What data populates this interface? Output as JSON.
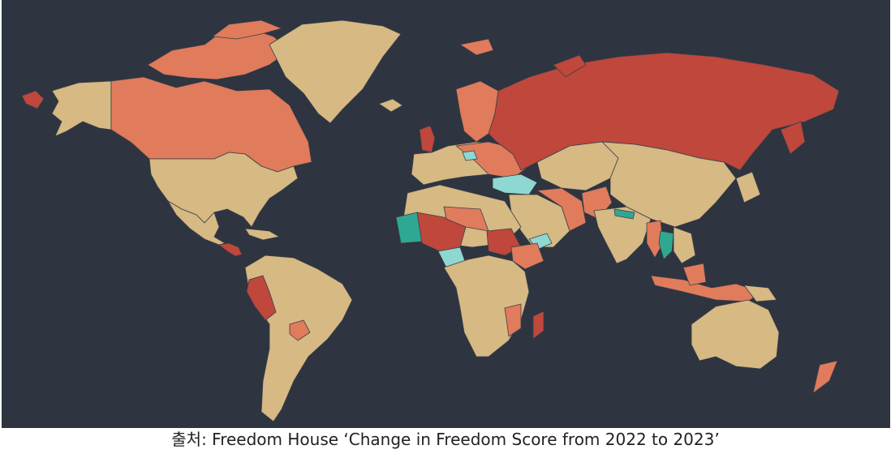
{
  "caption": "출처: Freedom House ‘Change in Freedom Score from 2022 to 2023’",
  "colors": {
    "ocean": "#2e3440",
    "no_change": "#d6b983",
    "decline_small": "#e07b5c",
    "decline_large": "#bf473c",
    "improve_small": "#8fd8d2",
    "improve_large": "#2fa891",
    "border": "#3a3f48"
  },
  "regions": {
    "declined_large": [
      "Russia",
      "Peru",
      "Sudan",
      "Mali",
      "Burkina Faso",
      "Madagascar",
      "Nicaragua",
      "Tunisia",
      "United Kingdom"
    ],
    "declined_small": [
      "Canada",
      "Alaska islands",
      "Arctic Canada",
      "Finland",
      "Sweden",
      "Norway",
      "Iran",
      "Afghanistan",
      "India region",
      "Myanmar",
      "Indonesia",
      "Ethiopia",
      "Mozambique",
      "Paraguay",
      "Niger",
      "Libya",
      "Turkey region"
    ],
    "improved_small": [
      "Turkey",
      "Nigeria",
      "Yemen",
      "Iraq"
    ],
    "improved_large": [
      "Mauritania",
      "Thailand",
      "Guinea-Bissau",
      "Nepal"
    ]
  }
}
